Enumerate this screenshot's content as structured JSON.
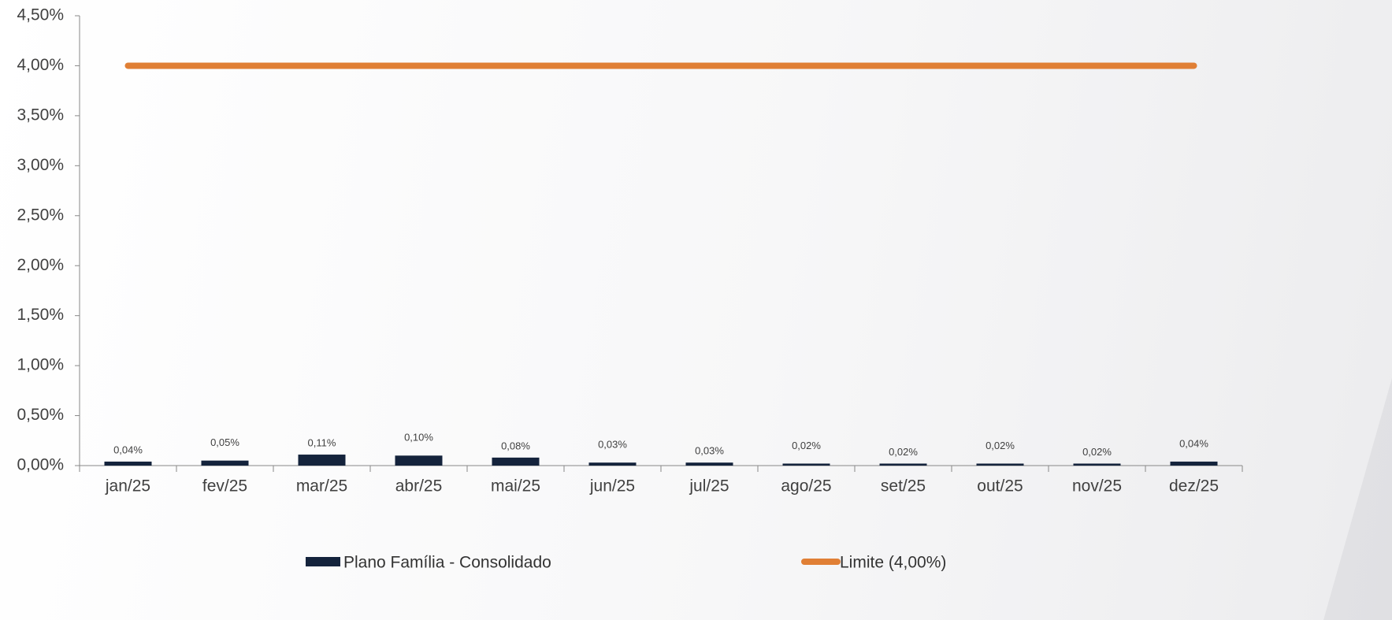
{
  "chart_data": {
    "type": "bar-line",
    "categories": [
      "jan/25",
      "fev/25",
      "mar/25",
      "abr/25",
      "mai/25",
      "jun/25",
      "jul/25",
      "ago/25",
      "set/25",
      "out/25",
      "nov/25",
      "dez/25"
    ],
    "series": [
      {
        "name": "Plano Família - Consolidado",
        "type": "bar",
        "color": "#14233c",
        "values": [
          0.04,
          0.05,
          0.11,
          0.1,
          0.08,
          0.03,
          0.03,
          0.02,
          0.02,
          0.02,
          0.02,
          0.04
        ],
        "value_labels": [
          "0,04%",
          "0,05%",
          "0,11%",
          "0,10%",
          "0,08%",
          "0,03%",
          "0,03%",
          "0,02%",
          "0,02%",
          "0,02%",
          "0,02%",
          "0,04%"
        ]
      },
      {
        "name": "Limite (4,00%)",
        "type": "line",
        "color": "#e07f35",
        "values": [
          4,
          4,
          4,
          4,
          4,
          4,
          4,
          4,
          4,
          4,
          4,
          4
        ]
      }
    ],
    "ylim": [
      0,
      4.5
    ],
    "yticks": [
      {
        "value": 0,
        "label": "0,00%"
      },
      {
        "value": 0.5,
        "label": "0,50%"
      },
      {
        "value": 1,
        "label": "1,00%"
      },
      {
        "value": 1.5,
        "label": "1,50%"
      },
      {
        "value": 2,
        "label": "2,00%"
      },
      {
        "value": 2.5,
        "label": "2,50%"
      },
      {
        "value": 3,
        "label": "3,00%"
      },
      {
        "value": 3.5,
        "label": "3,50%"
      },
      {
        "value": 4,
        "label": "4,00%"
      },
      {
        "value": 4.5,
        "label": "4,50%"
      }
    ],
    "grid": false
  }
}
